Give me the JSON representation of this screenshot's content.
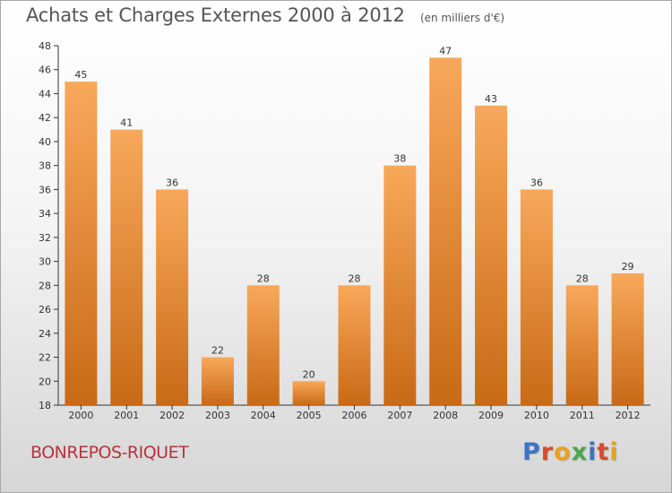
{
  "header": {
    "title": "Achats et Charges Externes 2000 à 2012",
    "unit": "(en milliers d'€)"
  },
  "footer": {
    "city": "BONREPOS-RIQUET",
    "logo_text": "Proxiti",
    "logo_colors": [
      "#3a74c4",
      "#d94a2a",
      "#e8a21c",
      "#4aa84a",
      "#3a74c4",
      "#d94a2a",
      "#e8a21c"
    ]
  },
  "colors": {
    "bar_top": "#f8a85a",
    "bar_bottom": "#c86a16",
    "axis": "#333333",
    "grid": "#cccccc"
  },
  "chart_data": {
    "type": "bar",
    "title": "Achats et Charges Externes 2000 à 2012",
    "xlabel": "",
    "ylabel": "",
    "categories": [
      "2000",
      "2001",
      "2002",
      "2003",
      "2004",
      "2005",
      "2006",
      "2007",
      "2008",
      "2009",
      "2010",
      "2011",
      "2012"
    ],
    "values": [
      45,
      41,
      36,
      22,
      28,
      20,
      28,
      38,
      47,
      43,
      36,
      28,
      29
    ],
    "ylim": [
      18,
      48
    ],
    "yticks": [
      18,
      20,
      22,
      24,
      26,
      28,
      30,
      32,
      34,
      36,
      38,
      40,
      42,
      44,
      46,
      48
    ],
    "grid": false,
    "data_labels": true
  }
}
